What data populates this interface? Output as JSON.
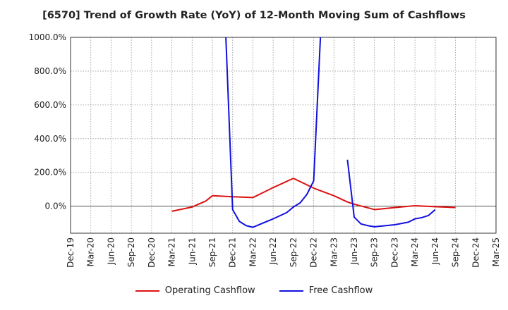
{
  "chart_data": {
    "type": "line",
    "title": "[6570]  Trend of Growth Rate (YoY) of 12-Month Moving Sum of Cashflows",
    "xlabel": "",
    "ylabel": "",
    "ylim": [
      -160,
      1000
    ],
    "y_ticks": [
      0,
      200,
      400,
      600,
      800,
      1000
    ],
    "y_tick_labels": [
      "0.0%",
      "200.0%",
      "400.0%",
      "600.0%",
      "800.0%",
      "1000.0%"
    ],
    "x_categories": [
      "Dec-19",
      "Jan-20",
      "Feb-20",
      "Mar-20",
      "Apr-20",
      "May-20",
      "Jun-20",
      "Jul-20",
      "Aug-20",
      "Sep-20",
      "Oct-20",
      "Nov-20",
      "Dec-20",
      "Jan-21",
      "Feb-21",
      "Mar-21",
      "Apr-21",
      "May-21",
      "Jun-21",
      "Jul-21",
      "Aug-21",
      "Sep-21",
      "Oct-21",
      "Nov-21",
      "Dec-21",
      "Jan-22",
      "Feb-22",
      "Mar-22",
      "Apr-22",
      "May-22",
      "Jun-22",
      "Jul-22",
      "Aug-22",
      "Sep-22",
      "Oct-22",
      "Nov-22",
      "Dec-22",
      "Jan-23",
      "Feb-23",
      "Mar-23",
      "Apr-23",
      "May-23",
      "Jun-23",
      "Jul-23",
      "Aug-23",
      "Sep-23",
      "Oct-23",
      "Nov-23",
      "Dec-23",
      "Jan-24",
      "Feb-24",
      "Mar-24",
      "Apr-24",
      "May-24",
      "Jun-24",
      "Jul-24",
      "Aug-24",
      "Sep-24",
      "Oct-24",
      "Nov-24",
      "Dec-24",
      "Jan-25",
      "Feb-25",
      "Mar-25"
    ],
    "x_tick_labels": [
      "Dec-19",
      "Mar-20",
      "Jun-20",
      "Sep-20",
      "Dec-20",
      "Mar-21",
      "Jun-21",
      "Sep-21",
      "Dec-21",
      "Mar-22",
      "Jun-22",
      "Sep-22",
      "Dec-22",
      "Mar-23",
      "Jun-23",
      "Sep-23",
      "Dec-23",
      "Mar-24",
      "Jun-24",
      "Sep-24",
      "Dec-24",
      "Mar-25"
    ],
    "grid": true,
    "legend_position": "bottom",
    "series": [
      {
        "name": "Operating Cashflow",
        "color": "#dd1111",
        "points": [
          [
            "Mar-21",
            -30
          ],
          [
            "Jun-21",
            -5
          ],
          [
            "Aug-21",
            30
          ],
          [
            "Sep-21",
            62
          ],
          [
            "Dec-21",
            56
          ],
          [
            "Mar-22",
            51
          ],
          [
            "Jun-22",
            110
          ],
          [
            "Sep-22",
            165
          ],
          [
            "Dec-22",
            107
          ],
          [
            "Mar-23",
            62
          ],
          [
            "May-23",
            25
          ],
          [
            "Jun-23",
            12
          ],
          [
            "Sep-23",
            -20
          ],
          [
            "Dec-23",
            -8
          ],
          [
            "Mar-24",
            3
          ],
          [
            "Jun-24",
            -3
          ],
          [
            "Sep-24",
            -8
          ]
        ]
      },
      {
        "name": "Free Cashflow",
        "color": "#1111dd",
        "segments": [
          [
            [
              "Nov-21",
              1000
            ],
            [
              "Dec-21",
              -20
            ],
            [
              "Jan-22",
              -90
            ],
            [
              "Feb-22",
              -115
            ],
            [
              "Mar-22",
              -125
            ],
            [
              "Apr-22",
              -108
            ],
            [
              "Jun-22",
              -75
            ],
            [
              "Aug-22",
              -38
            ],
            [
              "Sep-22",
              -5
            ],
            [
              "Oct-22",
              20
            ],
            [
              "Nov-22",
              70
            ],
            [
              "Dec-22",
              150
            ],
            [
              "Jan-23",
              1000
            ]
          ],
          [
            [
              "May-23",
              275
            ],
            [
              "Jun-23",
              -65
            ],
            [
              "Jul-23",
              -105
            ],
            [
              "Aug-23",
              -115
            ],
            [
              "Sep-23",
              -122
            ],
            [
              "Dec-23",
              -110
            ],
            [
              "Feb-24",
              -95
            ],
            [
              "Mar-24",
              -75
            ],
            [
              "Apr-24",
              -68
            ],
            [
              "May-24",
              -55
            ],
            [
              "Jun-24",
              -20
            ]
          ]
        ]
      }
    ]
  }
}
